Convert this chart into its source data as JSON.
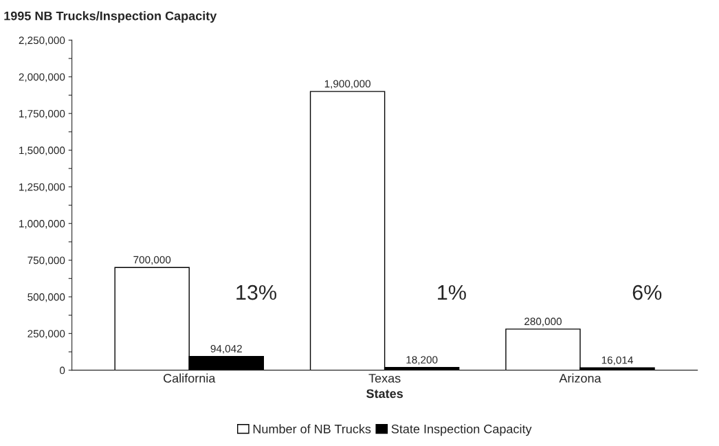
{
  "chart_data": {
    "type": "bar",
    "title": "1995 NB Trucks/Inspection Capacity",
    "xlabel": "States",
    "categories": [
      "California",
      "Texas",
      "Arizona"
    ],
    "series": [
      {
        "name": "Number of NB Trucks",
        "color": "#ffffff",
        "values": [
          700000,
          1900000,
          280000
        ],
        "value_labels": [
          "700,000",
          "1,900,000",
          "280,000"
        ]
      },
      {
        "name": "State Inspection Capacity",
        "color": "#000000",
        "values": [
          94042,
          18200,
          16014
        ],
        "value_labels": [
          "94,042",
          "18,200",
          "16,014"
        ]
      }
    ],
    "annotations": [
      "13%",
      "1%",
      "6%"
    ],
    "ylim": [
      0,
      2250000
    ],
    "yticks": [
      0,
      {
        "value": 125000,
        "label": null
      },
      {
        "value": 250000,
        "label": "250,000"
      },
      {
        "value": 375000,
        "label": null
      },
      {
        "value": 500000,
        "label": "500,000"
      },
      {
        "value": 625000,
        "label": null
      },
      {
        "value": 750000,
        "label": "750,000"
      },
      {
        "value": 875000,
        "label": null
      },
      {
        "value": 1000000,
        "label": "1,000,000"
      },
      {
        "value": 1125000,
        "label": null
      },
      {
        "value": 1250000,
        "label": "1,250,000"
      },
      {
        "value": 1375000,
        "label": null
      },
      {
        "value": 1500000,
        "label": "1,500,000"
      },
      {
        "value": 1625000,
        "label": null
      },
      {
        "value": 1750000,
        "label": "1,750,000"
      },
      {
        "value": 1875000,
        "label": null
      },
      {
        "value": 2000000,
        "label": "2,000,000"
      },
      {
        "value": 2125000,
        "label": null
      },
      {
        "value": 2250000,
        "label": "2,250,000"
      }
    ],
    "grid": false,
    "legend": "bottom"
  }
}
